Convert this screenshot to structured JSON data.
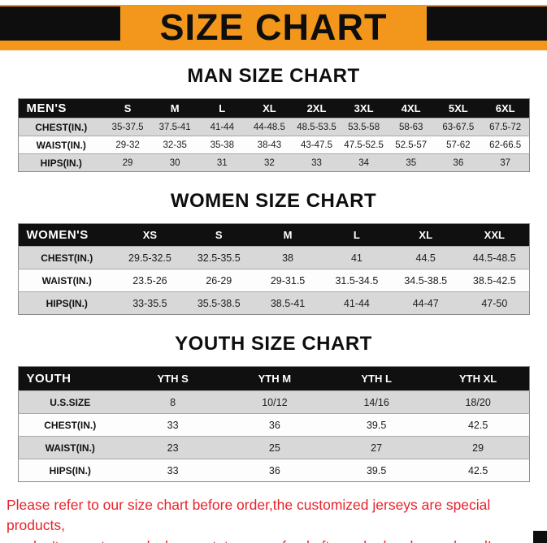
{
  "banner": {
    "title": "SIZE CHART",
    "bg_color": "#F2971B",
    "corner_color": "#0E0E0E"
  },
  "sections": [
    {
      "id": "men",
      "heading": "MAN SIZE CHART",
      "table": {
        "header": [
          "MEN'S",
          "S",
          "M",
          "L",
          "XL",
          "2XL",
          "3XL",
          "4XL",
          "5XL",
          "6XL"
        ],
        "rows": [
          [
            "CHEST(IN.)",
            "35-37.5",
            "37.5-41",
            "41-44",
            "44-48.5",
            "48.5-53.5",
            "53.5-58",
            "58-63",
            "63-67.5",
            "67.5-72"
          ],
          [
            "WAIST(IN.)",
            "29-32",
            "32-35",
            "35-38",
            "38-43",
            "43-47.5",
            "47.5-52.5",
            "52.5-57",
            "57-62",
            "62-66.5"
          ],
          [
            "HIPS(IN.)",
            "29",
            "30",
            "31",
            "32",
            "33",
            "34",
            "35",
            "36",
            "37"
          ]
        ]
      }
    },
    {
      "id": "women",
      "heading": "WOMEN SIZE CHART",
      "table": {
        "header": [
          "WOMEN'S",
          "XS",
          "S",
          "M",
          "L",
          "XL",
          "XXL"
        ],
        "rows": [
          [
            "CHEST(IN.)",
            "29.5-32.5",
            "32.5-35.5",
            "38",
            "41",
            "44.5",
            "44.5-48.5"
          ],
          [
            "WAIST(IN.)",
            "23.5-26",
            "26-29",
            "29-31.5",
            "31.5-34.5",
            "34.5-38.5",
            "38.5-42.5"
          ],
          [
            "HIPS(IN.)",
            "33-35.5",
            "35.5-38.5",
            "38.5-41",
            "41-44",
            "44-47",
            "47-50"
          ]
        ]
      }
    },
    {
      "id": "youth",
      "heading": "YOUTH SIZE CHART",
      "table": {
        "header": [
          "YOUTH",
          "YTH S",
          "YTH M",
          "YTH L",
          "YTH XL"
        ],
        "rows": [
          [
            "U.S.SIZE",
            "8",
            "10/12",
            "14/16",
            "18/20"
          ],
          [
            "CHEST(IN.)",
            "33",
            "36",
            "39.5",
            "42.5"
          ],
          [
            "WAIST(IN.)",
            "23",
            "25",
            "27",
            "29"
          ],
          [
            "HIPS(IN.)",
            "33",
            "36",
            "39.5",
            "42.5"
          ]
        ]
      }
    }
  ],
  "footer": {
    "line1": "Please refer to our size chart before order,the customized jerseys are special products,",
    "line2": "we don't accept cancel, change, teturn or refund after order has been placed!",
    "color": "#E8232B"
  }
}
